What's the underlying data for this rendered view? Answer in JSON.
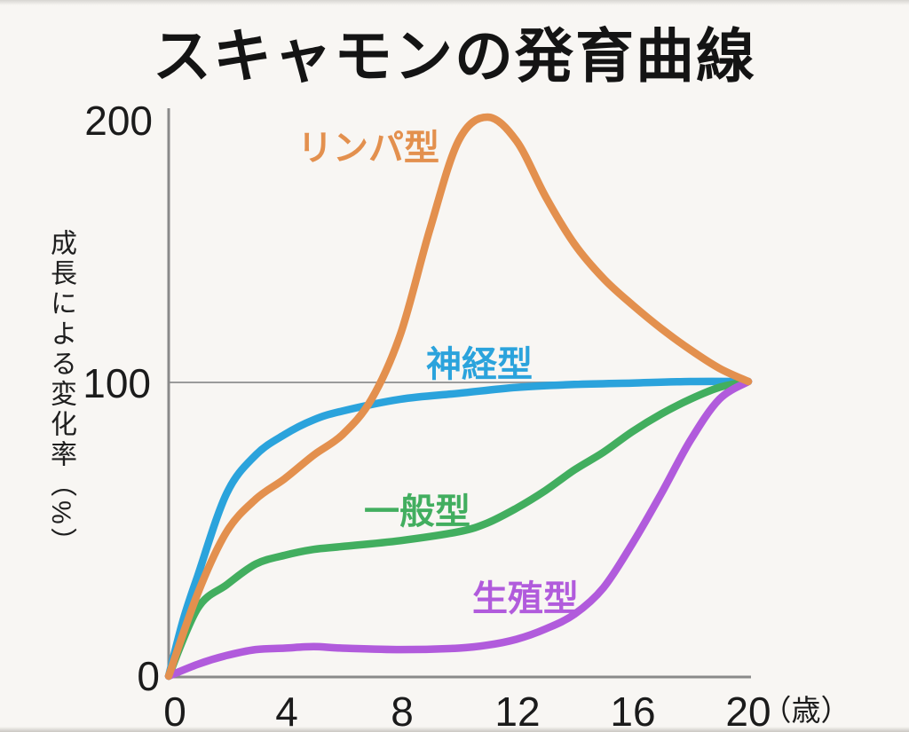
{
  "title": "スキャモンの発育曲線",
  "axes": {
    "y_axis_title": "成長による変化率（%）",
    "y_tick_labels": [
      "200",
      "100",
      "0"
    ],
    "x_tick_labels": [
      "0",
      "4",
      "8",
      "12",
      "16",
      "20"
    ],
    "x_unit_label": "（歳）"
  },
  "colors": {
    "background": "#F8F6F3",
    "axis": "#8A8A8A",
    "gridline": "#9B9B9B",
    "title_text": "#141414"
  },
  "chart_data": {
    "type": "line",
    "title": "スキャモンの発育曲線",
    "ylabel": "成長による変化率（%）",
    "xlabel": "（歳）",
    "x_ticks": [
      0,
      4,
      8,
      12,
      16,
      20
    ],
    "y_ticks": [
      0,
      100,
      200
    ],
    "xlim": [
      0,
      20
    ],
    "ylim": [
      0,
      205
    ],
    "grid": "single horizontal gridline at y=100",
    "legend_position": "inline colored labels beside each curve",
    "series": [
      {
        "name": "神経型",
        "color": "#2BA3DC",
        "points": [
          [
            0,
            0
          ],
          [
            0.5,
            19
          ],
          [
            1,
            34
          ],
          [
            2,
            62
          ],
          [
            3,
            75
          ],
          [
            4,
            82
          ],
          [
            5,
            87
          ],
          [
            6,
            90
          ],
          [
            8,
            94
          ],
          [
            10,
            96
          ],
          [
            12,
            98
          ],
          [
            14,
            99
          ],
          [
            16,
            99.5
          ],
          [
            18,
            100
          ],
          [
            20,
            100
          ]
        ]
      },
      {
        "name": "一般型",
        "color": "#42AE5F",
        "points": [
          [
            0,
            0
          ],
          [
            1,
            23
          ],
          [
            2,
            31
          ],
          [
            3,
            38
          ],
          [
            4,
            41
          ],
          [
            5,
            43
          ],
          [
            6,
            44
          ],
          [
            8,
            46
          ],
          [
            10,
            49
          ],
          [
            11,
            52
          ],
          [
            12,
            57
          ],
          [
            13,
            63
          ],
          [
            14,
            70
          ],
          [
            15,
            76
          ],
          [
            16,
            83
          ],
          [
            17,
            89
          ],
          [
            18,
            94
          ],
          [
            19,
            98
          ],
          [
            20,
            100
          ]
        ]
      },
      {
        "name": "生殖型",
        "color": "#B15BDC",
        "points": [
          [
            0,
            0
          ],
          [
            1,
            4
          ],
          [
            2,
            7
          ],
          [
            3,
            9
          ],
          [
            4,
            9.5
          ],
          [
            5,
            10
          ],
          [
            6,
            9.5
          ],
          [
            8,
            9
          ],
          [
            10,
            9.5
          ],
          [
            11,
            10.5
          ],
          [
            12,
            12.5
          ],
          [
            13,
            16
          ],
          [
            14,
            21
          ],
          [
            15,
            30
          ],
          [
            16,
            45
          ],
          [
            17,
            62
          ],
          [
            18,
            80
          ],
          [
            19,
            94
          ],
          [
            20,
            100
          ]
        ]
      },
      {
        "name": "リンパ型",
        "color": "#E3904E",
        "points": [
          [
            0,
            0
          ],
          [
            1,
            28
          ],
          [
            2,
            49
          ],
          [
            3,
            60
          ],
          [
            4,
            67
          ],
          [
            5,
            75
          ],
          [
            6,
            82
          ],
          [
            7,
            94
          ],
          [
            8,
            118
          ],
          [
            9,
            157
          ],
          [
            10,
            191
          ],
          [
            11,
            200
          ],
          [
            12,
            191
          ],
          [
            13,
            170
          ],
          [
            14,
            152
          ],
          [
            15,
            139
          ],
          [
            16,
            129
          ],
          [
            17,
            120
          ],
          [
            18,
            112
          ],
          [
            19,
            105
          ],
          [
            20,
            100
          ]
        ]
      }
    ]
  }
}
